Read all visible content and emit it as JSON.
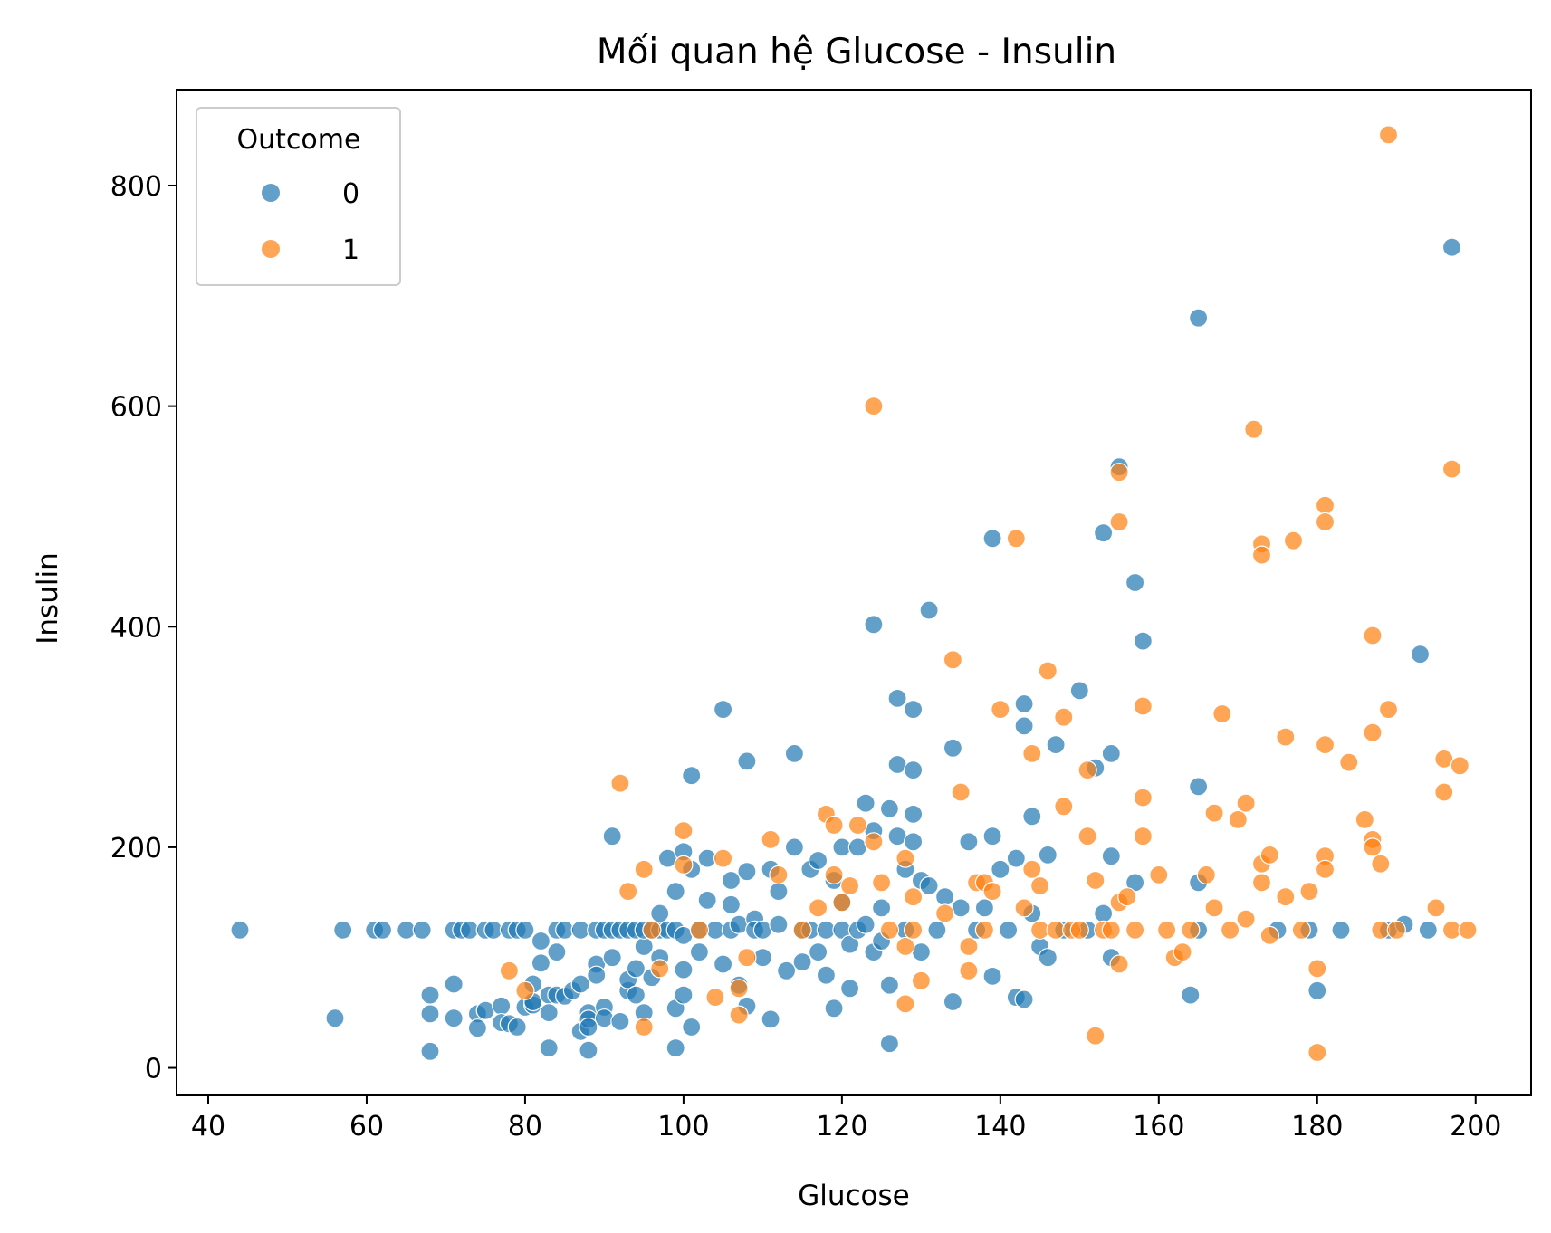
{
  "chart_data": {
    "type": "scatter",
    "title": "Mối quan hệ Glucose - Insulin",
    "xlabel": "Glucose",
    "ylabel": "Insulin",
    "xlim": [
      36,
      207
    ],
    "ylim": [
      -25,
      887
    ],
    "xticks": [
      40,
      60,
      80,
      100,
      120,
      140,
      160,
      180,
      200
    ],
    "yticks": [
      0,
      200,
      400,
      600,
      800
    ],
    "legend": {
      "title": "Outcome",
      "position": "top-left"
    },
    "series": [
      {
        "name": "0",
        "color": "#1f77b4",
        "points": [
          [
            44,
            125
          ],
          [
            56,
            45
          ],
          [
            57,
            125
          ],
          [
            61,
            125
          ],
          [
            62,
            125
          ],
          [
            65,
            125
          ],
          [
            67,
            125
          ],
          [
            68,
            66
          ],
          [
            68,
            49
          ],
          [
            68,
            15
          ],
          [
            71,
            45
          ],
          [
            71,
            125
          ],
          [
            71,
            76
          ],
          [
            72,
            125
          ],
          [
            73,
            125
          ],
          [
            74,
            49
          ],
          [
            74,
            36
          ],
          [
            75,
            52
          ],
          [
            75,
            125
          ],
          [
            76,
            125
          ],
          [
            77,
            56
          ],
          [
            77,
            41
          ],
          [
            78,
            125
          ],
          [
            78,
            40
          ],
          [
            79,
            125
          ],
          [
            79,
            37
          ],
          [
            80,
            125
          ],
          [
            80,
            55
          ],
          [
            81,
            57
          ],
          [
            81,
            76
          ],
          [
            81,
            60
          ],
          [
            82,
            95
          ],
          [
            82,
            115
          ],
          [
            83,
            66
          ],
          [
            83,
            18
          ],
          [
            83,
            50
          ],
          [
            84,
            66
          ],
          [
            84,
            125
          ],
          [
            84,
            105
          ],
          [
            85,
            125
          ],
          [
            85,
            65
          ],
          [
            86,
            70
          ],
          [
            87,
            76
          ],
          [
            87,
            33
          ],
          [
            87,
            125
          ],
          [
            88,
            50
          ],
          [
            88,
            44
          ],
          [
            88,
            16
          ],
          [
            88,
            37
          ],
          [
            89,
            125
          ],
          [
            89,
            94
          ],
          [
            89,
            84
          ],
          [
            90,
            55
          ],
          [
            90,
            125
          ],
          [
            90,
            45
          ],
          [
            91,
            125
          ],
          [
            91,
            210
          ],
          [
            91,
            100
          ],
          [
            92,
            125
          ],
          [
            92,
            42
          ],
          [
            93,
            125
          ],
          [
            93,
            70
          ],
          [
            93,
            80
          ],
          [
            94,
            66
          ],
          [
            94,
            90
          ],
          [
            94,
            125
          ],
          [
            95,
            50
          ],
          [
            95,
            110
          ],
          [
            95,
            125
          ],
          [
            96,
            125
          ],
          [
            96,
            82
          ],
          [
            97,
            125
          ],
          [
            97,
            140
          ],
          [
            97,
            100
          ],
          [
            98,
            190
          ],
          [
            98,
            125
          ],
          [
            99,
            125
          ],
          [
            99,
            160
          ],
          [
            99,
            18
          ],
          [
            99,
            54
          ],
          [
            100,
            196
          ],
          [
            100,
            120
          ],
          [
            100,
            89
          ],
          [
            100,
            66
          ],
          [
            101,
            265
          ],
          [
            101,
            180
          ],
          [
            101,
            37
          ],
          [
            102,
            125
          ],
          [
            102,
            105
          ],
          [
            103,
            190
          ],
          [
            103,
            152
          ],
          [
            104,
            125
          ],
          [
            105,
            325
          ],
          [
            105,
            94
          ],
          [
            106,
            170
          ],
          [
            106,
            148
          ],
          [
            106,
            125
          ],
          [
            107,
            130
          ],
          [
            107,
            75
          ],
          [
            108,
            278
          ],
          [
            108,
            178
          ],
          [
            108,
            56
          ],
          [
            109,
            135
          ],
          [
            109,
            125
          ],
          [
            110,
            125
          ],
          [
            110,
            100
          ],
          [
            111,
            180
          ],
          [
            111,
            44
          ],
          [
            112,
            160
          ],
          [
            112,
            130
          ],
          [
            113,
            88
          ],
          [
            114,
            285
          ],
          [
            114,
            200
          ],
          [
            115,
            125
          ],
          [
            115,
            96
          ],
          [
            116,
            125
          ],
          [
            116,
            180
          ],
          [
            117,
            188
          ],
          [
            117,
            105
          ],
          [
            118,
            125
          ],
          [
            118,
            84
          ],
          [
            119,
            170
          ],
          [
            119,
            54
          ],
          [
            120,
            200
          ],
          [
            120,
            125
          ],
          [
            120,
            150
          ],
          [
            121,
            112
          ],
          [
            121,
            72
          ],
          [
            122,
            200
          ],
          [
            122,
            125
          ],
          [
            123,
            240
          ],
          [
            123,
            130
          ],
          [
            124,
            402
          ],
          [
            124,
            215
          ],
          [
            124,
            105
          ],
          [
            125,
            115
          ],
          [
            125,
            145
          ],
          [
            126,
            235
          ],
          [
            126,
            22
          ],
          [
            126,
            75
          ],
          [
            127,
            335
          ],
          [
            127,
            275
          ],
          [
            127,
            210
          ],
          [
            128,
            180
          ],
          [
            128,
            125
          ],
          [
            129,
            325
          ],
          [
            129,
            270
          ],
          [
            129,
            230
          ],
          [
            129,
            205
          ],
          [
            130,
            170
          ],
          [
            130,
            105
          ],
          [
            131,
            415
          ],
          [
            131,
            165
          ],
          [
            132,
            125
          ],
          [
            133,
            155
          ],
          [
            134,
            290
          ],
          [
            134,
            60
          ],
          [
            135,
            145
          ],
          [
            136,
            205
          ],
          [
            137,
            125
          ],
          [
            138,
            145
          ],
          [
            139,
            480
          ],
          [
            139,
            210
          ],
          [
            139,
            83
          ],
          [
            140,
            180
          ],
          [
            141,
            125
          ],
          [
            142,
            190
          ],
          [
            142,
            64
          ],
          [
            143,
            330
          ],
          [
            143,
            310
          ],
          [
            143,
            62
          ],
          [
            144,
            228
          ],
          [
            144,
            140
          ],
          [
            145,
            110
          ],
          [
            146,
            193
          ],
          [
            146,
            100
          ],
          [
            147,
            293
          ],
          [
            148,
            125
          ],
          [
            150,
            342
          ],
          [
            151,
            125
          ],
          [
            152,
            272
          ],
          [
            153,
            485
          ],
          [
            153,
            140
          ],
          [
            154,
            285
          ],
          [
            154,
            192
          ],
          [
            154,
            100
          ],
          [
            155,
            545
          ],
          [
            157,
            440
          ],
          [
            157,
            168
          ],
          [
            158,
            387
          ],
          [
            164,
            66
          ],
          [
            165,
            680
          ],
          [
            165,
            255
          ],
          [
            165,
            168
          ],
          [
            165,
            125
          ],
          [
            175,
            125
          ],
          [
            179,
            125
          ],
          [
            180,
            70
          ],
          [
            183,
            125
          ],
          [
            189,
            125
          ],
          [
            191,
            130
          ],
          [
            193,
            375
          ],
          [
            194,
            125
          ],
          [
            197,
            744
          ]
        ]
      },
      {
        "name": "1",
        "color": "#ff7f0e",
        "points": [
          [
            78,
            88
          ],
          [
            80,
            70
          ],
          [
            92,
            258
          ],
          [
            93,
            160
          ],
          [
            95,
            180
          ],
          [
            95,
            37
          ],
          [
            96,
            125
          ],
          [
            97,
            90
          ],
          [
            100,
            215
          ],
          [
            100,
            184
          ],
          [
            102,
            125
          ],
          [
            104,
            64
          ],
          [
            105,
            190
          ],
          [
            107,
            48
          ],
          [
            107,
            72
          ],
          [
            108,
            100
          ],
          [
            111,
            207
          ],
          [
            112,
            175
          ],
          [
            115,
            125
          ],
          [
            117,
            145
          ],
          [
            118,
            230
          ],
          [
            119,
            220
          ],
          [
            119,
            175
          ],
          [
            120,
            150
          ],
          [
            121,
            165
          ],
          [
            122,
            220
          ],
          [
            124,
            600
          ],
          [
            124,
            205
          ],
          [
            125,
            168
          ],
          [
            126,
            125
          ],
          [
            128,
            190
          ],
          [
            128,
            110
          ],
          [
            128,
            58
          ],
          [
            129,
            125
          ],
          [
            129,
            155
          ],
          [
            130,
            79
          ],
          [
            133,
            140
          ],
          [
            134,
            370
          ],
          [
            135,
            250
          ],
          [
            136,
            110
          ],
          [
            136,
            88
          ],
          [
            137,
            168
          ],
          [
            138,
            168
          ],
          [
            138,
            125
          ],
          [
            139,
            160
          ],
          [
            140,
            325
          ],
          [
            142,
            480
          ],
          [
            143,
            145
          ],
          [
            144,
            180
          ],
          [
            144,
            285
          ],
          [
            145,
            165
          ],
          [
            145,
            125
          ],
          [
            146,
            360
          ],
          [
            147,
            125
          ],
          [
            148,
            318
          ],
          [
            148,
            237
          ],
          [
            149,
            125
          ],
          [
            150,
            125
          ],
          [
            151,
            270
          ],
          [
            151,
            210
          ],
          [
            152,
            170
          ],
          [
            152,
            29
          ],
          [
            153,
            125
          ],
          [
            154,
            125
          ],
          [
            155,
            540
          ],
          [
            155,
            495
          ],
          [
            155,
            150
          ],
          [
            155,
            94
          ],
          [
            156,
            155
          ],
          [
            157,
            125
          ],
          [
            158,
            328
          ],
          [
            158,
            245
          ],
          [
            158,
            210
          ],
          [
            160,
            175
          ],
          [
            161,
            125
          ],
          [
            162,
            100
          ],
          [
            163,
            105
          ],
          [
            164,
            125
          ],
          [
            166,
            175
          ],
          [
            167,
            231
          ],
          [
            167,
            145
          ],
          [
            168,
            321
          ],
          [
            169,
            125
          ],
          [
            170,
            225
          ],
          [
            171,
            240
          ],
          [
            171,
            135
          ],
          [
            172,
            579
          ],
          [
            173,
            475
          ],
          [
            173,
            465
          ],
          [
            173,
            185
          ],
          [
            173,
            168
          ],
          [
            174,
            193
          ],
          [
            174,
            120
          ],
          [
            176,
            300
          ],
          [
            176,
            155
          ],
          [
            177,
            478
          ],
          [
            178,
            125
          ],
          [
            179,
            160
          ],
          [
            180,
            90
          ],
          [
            180,
            14
          ],
          [
            181,
            510
          ],
          [
            181,
            495
          ],
          [
            181,
            293
          ],
          [
            181,
            192
          ],
          [
            181,
            180
          ],
          [
            184,
            277
          ],
          [
            186,
            225
          ],
          [
            187,
            392
          ],
          [
            187,
            304
          ],
          [
            187,
            207
          ],
          [
            187,
            200
          ],
          [
            188,
            185
          ],
          [
            188,
            125
          ],
          [
            189,
            846
          ],
          [
            189,
            325
          ],
          [
            190,
            125
          ],
          [
            195,
            145
          ],
          [
            196,
            280
          ],
          [
            196,
            250
          ],
          [
            197,
            543
          ],
          [
            197,
            125
          ],
          [
            198,
            274
          ],
          [
            199,
            125
          ]
        ]
      }
    ]
  }
}
